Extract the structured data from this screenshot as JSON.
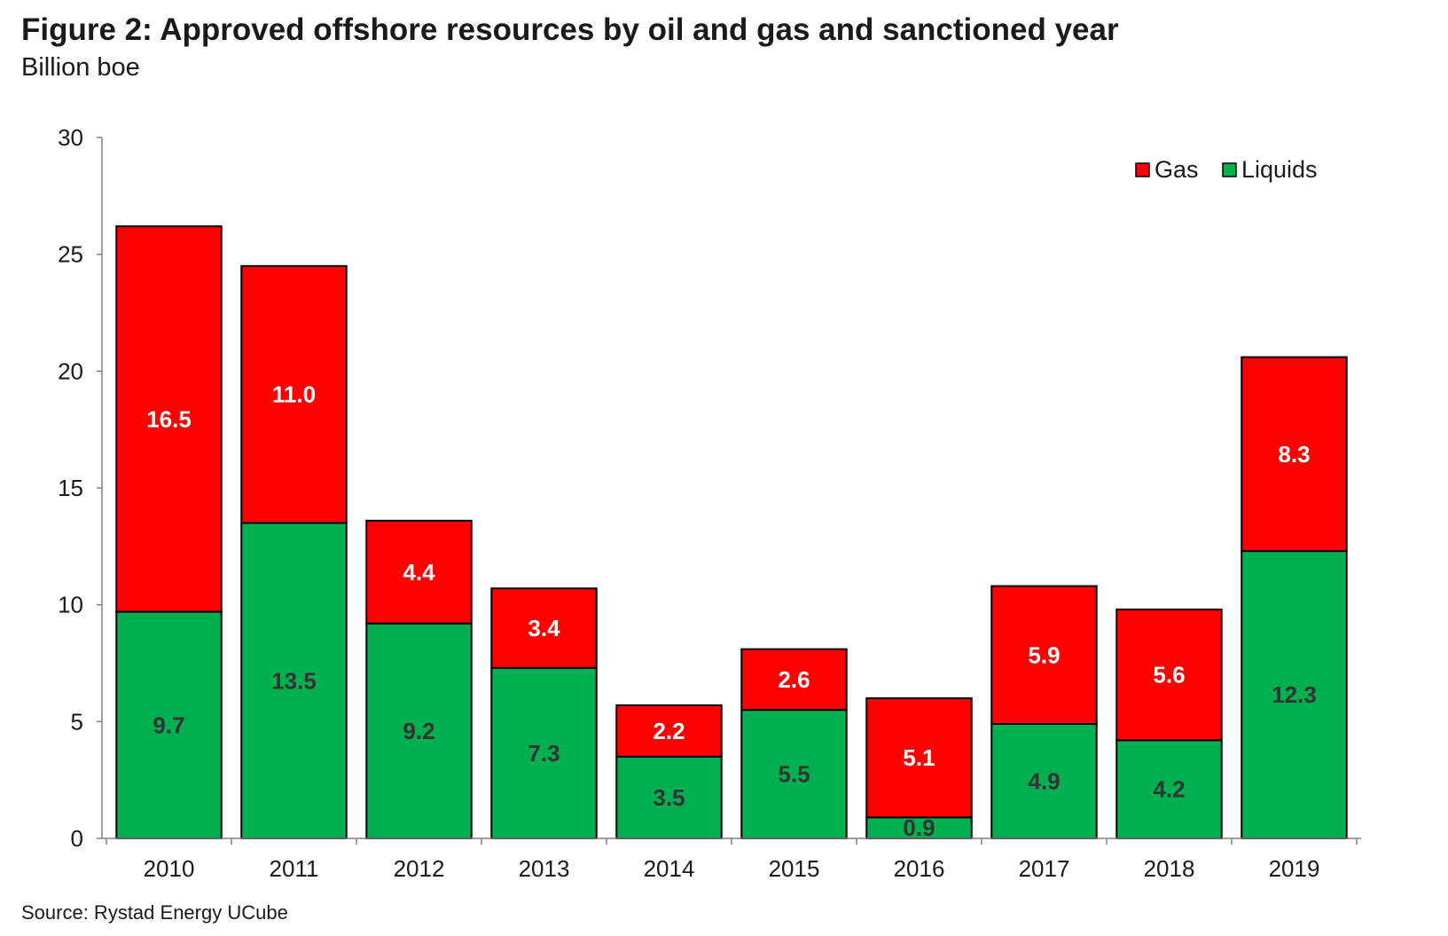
{
  "chart_data": {
    "type": "bar",
    "stacked": true,
    "title": "Figure 2: Approved offshore resources by oil and gas and sanctioned year",
    "subtitle": "Billion boe",
    "source": "Source: Rystad Energy UCube",
    "xlabel": "",
    "ylabel": "",
    "ylim": [
      0,
      30
    ],
    "yticks": [
      "0",
      "5",
      "10",
      "15",
      "20",
      "25",
      "30"
    ],
    "ytick_values": [
      0,
      5,
      10,
      15,
      20,
      25,
      30
    ],
    "grid": false,
    "legend_position": "top-right",
    "categories": [
      "2010",
      "2011",
      "2012",
      "2013",
      "2014",
      "2015",
      "2016",
      "2017",
      "2018",
      "2019"
    ],
    "series": [
      {
        "name": "Liquids",
        "color": "#00b050",
        "label_color": "#333333",
        "values": [
          9.7,
          13.5,
          9.2,
          7.3,
          3.5,
          5.5,
          0.9,
          4.9,
          4.2,
          12.3
        ],
        "labels": [
          "9.7",
          "13.5",
          "9.2",
          "7.3",
          "3.5",
          "5.5",
          "0.9",
          "4.9",
          "4.2",
          "12.3"
        ]
      },
      {
        "name": "Gas",
        "color": "#ff0000",
        "label_color": "#ffffff",
        "values": [
          16.5,
          11.0,
          4.4,
          3.4,
          2.2,
          2.6,
          5.1,
          5.9,
          5.6,
          8.3
        ],
        "labels": [
          "16.5",
          "11.0",
          "4.4",
          "3.4",
          "2.2",
          "2.6",
          "5.1",
          "5.9",
          "5.6",
          "8.3"
        ]
      }
    ],
    "legend": [
      "Gas",
      "Liquids"
    ]
  }
}
